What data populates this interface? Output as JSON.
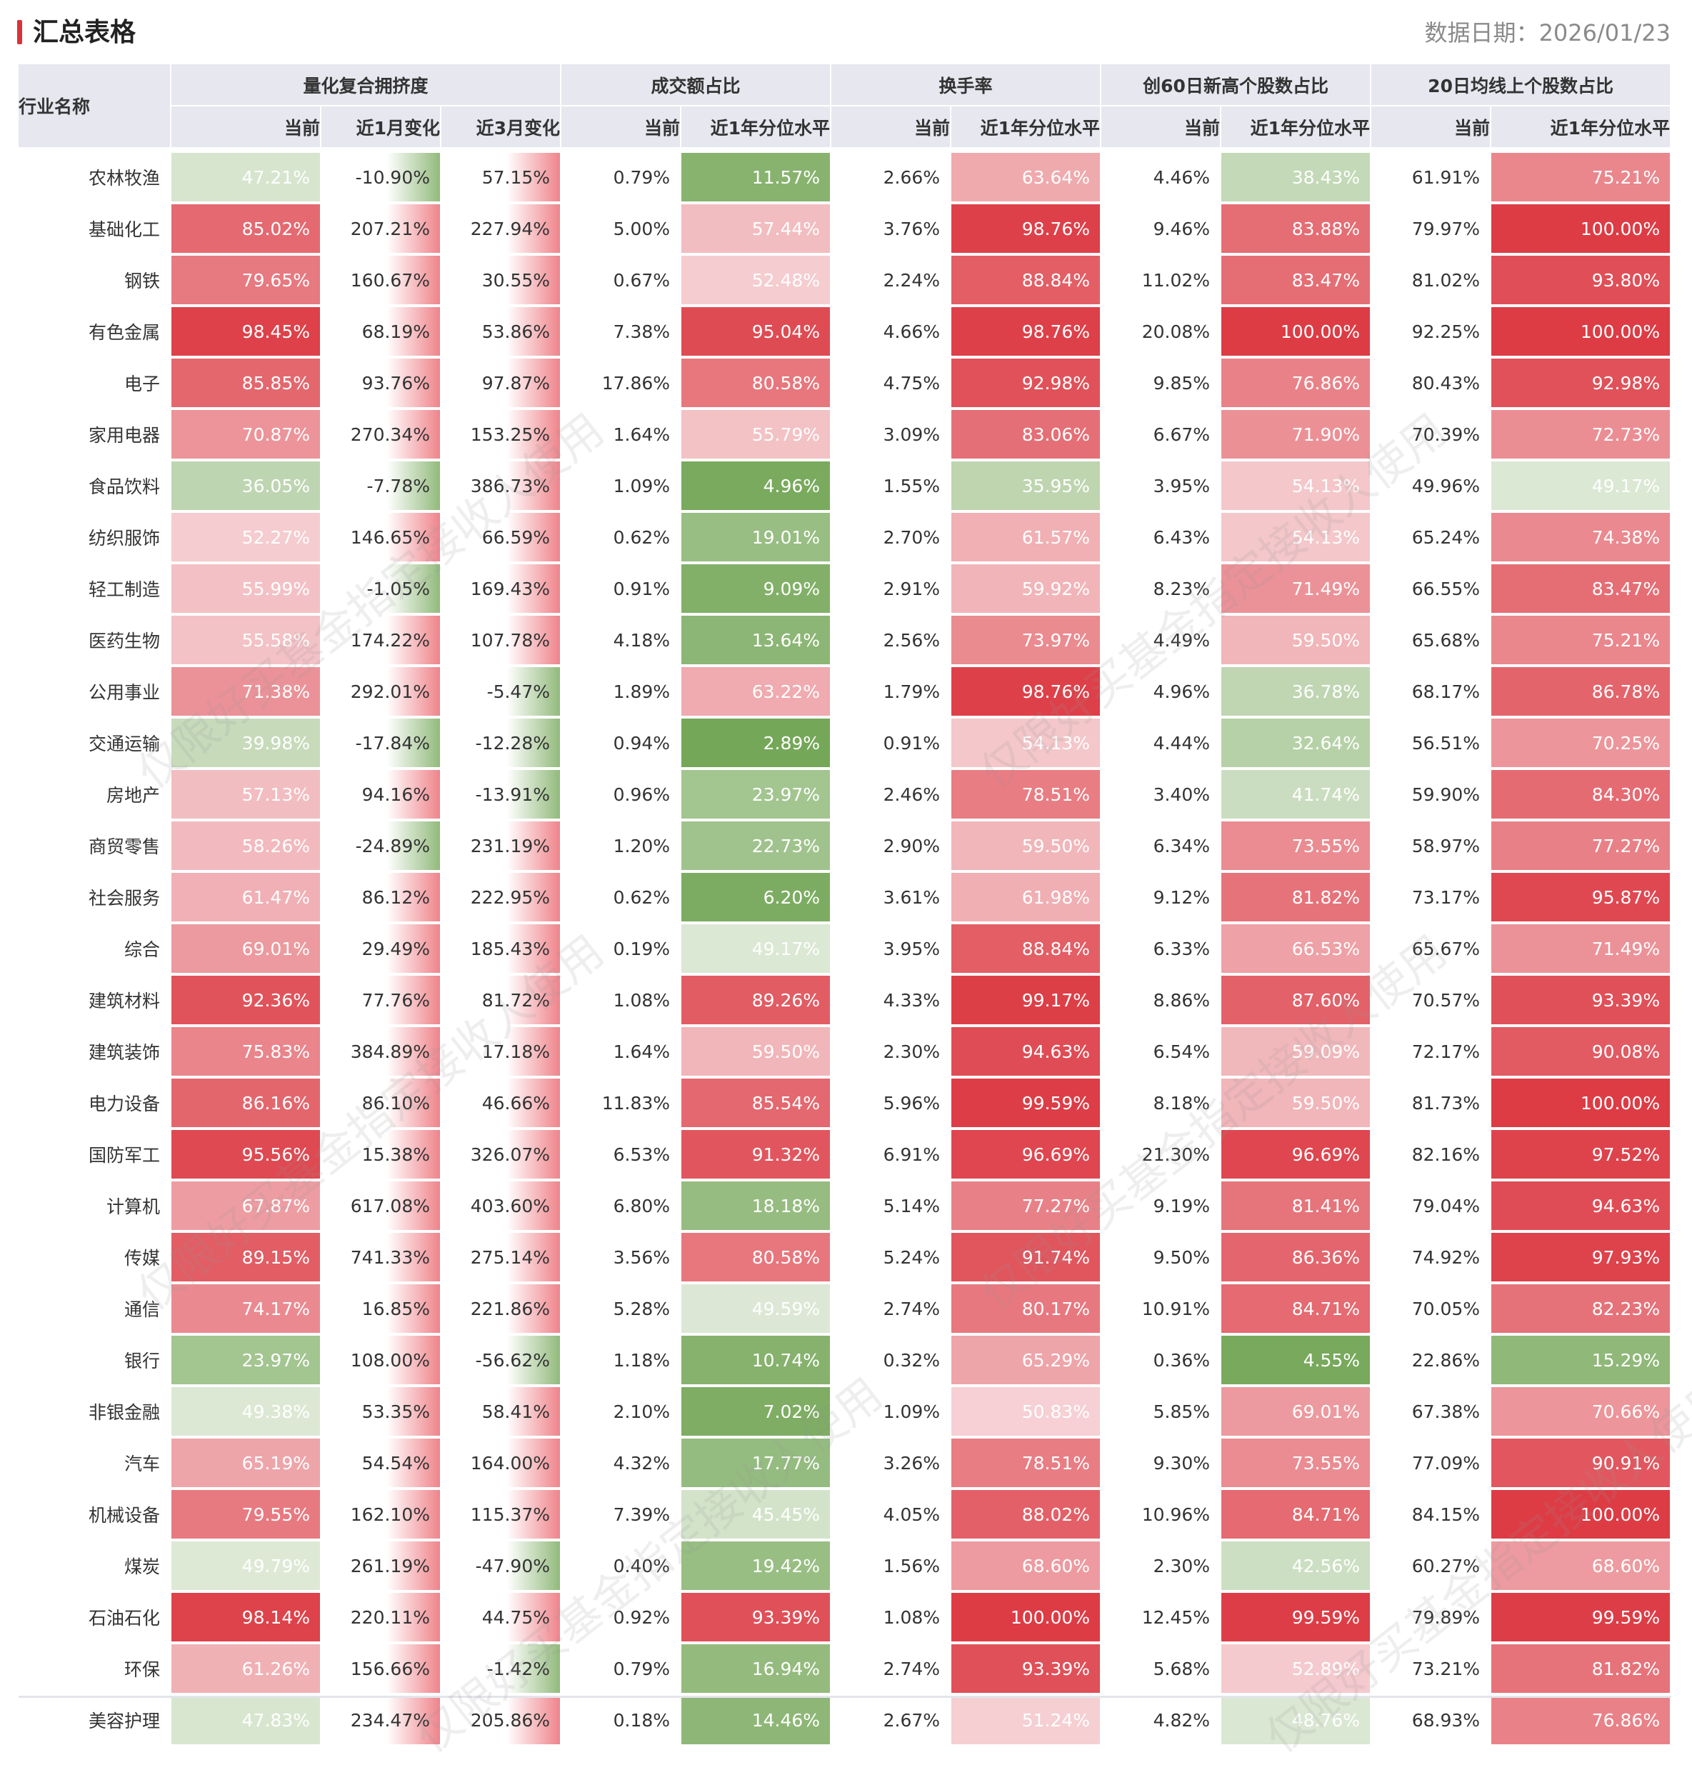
{
  "header": {
    "title": "汇总表格",
    "date_label": "数据日期：",
    "date_value": "2026/01/23"
  },
  "watermark_text": "仅限好买基金指定接收人使用",
  "table": {
    "name_header": "行业名称",
    "groups": [
      "量化复合拥挤度",
      "成交额占比",
      "换手率",
      "创60日新高个股数占比",
      "20日均线上个股数占比"
    ],
    "sub_headers": [
      "当前",
      "近1月变化",
      "近3月变化",
      "当前",
      "近1年分位水平",
      "当前",
      "近1年分位水平",
      "当前",
      "近1年分位水平",
      "当前",
      "近1年分位水平"
    ],
    "rows": [
      {
        "name": "农林牧渔",
        "v": [
          "47.21%",
          "-10.90%",
          "57.15%",
          "0.79%",
          "11.57%",
          "2.66%",
          "63.64%",
          "4.46%",
          "38.43%",
          "61.91%",
          "75.21%"
        ]
      },
      {
        "name": "基础化工",
        "v": [
          "85.02%",
          "207.21%",
          "227.94%",
          "5.00%",
          "57.44%",
          "3.76%",
          "98.76%",
          "9.46%",
          "83.88%",
          "79.97%",
          "100.00%"
        ]
      },
      {
        "name": "钢铁",
        "v": [
          "79.65%",
          "160.67%",
          "30.55%",
          "0.67%",
          "52.48%",
          "2.24%",
          "88.84%",
          "11.02%",
          "83.47%",
          "81.02%",
          "93.80%"
        ]
      },
      {
        "name": "有色金属",
        "v": [
          "98.45%",
          "68.19%",
          "53.86%",
          "7.38%",
          "95.04%",
          "4.66%",
          "98.76%",
          "20.08%",
          "100.00%",
          "92.25%",
          "100.00%"
        ]
      },
      {
        "name": "电子",
        "v": [
          "85.85%",
          "93.76%",
          "97.87%",
          "17.86%",
          "80.58%",
          "4.75%",
          "92.98%",
          "9.85%",
          "76.86%",
          "80.43%",
          "92.98%"
        ]
      },
      {
        "name": "家用电器",
        "v": [
          "70.87%",
          "270.34%",
          "153.25%",
          "1.64%",
          "55.79%",
          "3.09%",
          "83.06%",
          "6.67%",
          "71.90%",
          "70.39%",
          "72.73%"
        ]
      },
      {
        "name": "食品饮料",
        "v": [
          "36.05%",
          "-7.78%",
          "386.73%",
          "1.09%",
          "4.96%",
          "1.55%",
          "35.95%",
          "3.95%",
          "54.13%",
          "49.96%",
          "49.17%"
        ]
      },
      {
        "name": "纺织服饰",
        "v": [
          "52.27%",
          "146.65%",
          "66.59%",
          "0.62%",
          "19.01%",
          "2.70%",
          "61.57%",
          "6.43%",
          "54.13%",
          "65.24%",
          "74.38%"
        ]
      },
      {
        "name": "轻工制造",
        "v": [
          "55.99%",
          "-1.05%",
          "169.43%",
          "0.91%",
          "9.09%",
          "2.91%",
          "59.92%",
          "8.23%",
          "71.49%",
          "66.55%",
          "83.47%"
        ]
      },
      {
        "name": "医药生物",
        "v": [
          "55.58%",
          "174.22%",
          "107.78%",
          "4.18%",
          "13.64%",
          "2.56%",
          "73.97%",
          "4.49%",
          "59.50%",
          "65.68%",
          "75.21%"
        ]
      },
      {
        "name": "公用事业",
        "v": [
          "71.38%",
          "292.01%",
          "-5.47%",
          "1.89%",
          "63.22%",
          "1.79%",
          "98.76%",
          "4.96%",
          "36.78%",
          "68.17%",
          "86.78%"
        ]
      },
      {
        "name": "交通运输",
        "v": [
          "39.98%",
          "-17.84%",
          "-12.28%",
          "0.94%",
          "2.89%",
          "0.91%",
          "54.13%",
          "4.44%",
          "32.64%",
          "56.51%",
          "70.25%"
        ]
      },
      {
        "name": "房地产",
        "v": [
          "57.13%",
          "94.16%",
          "-13.91%",
          "0.96%",
          "23.97%",
          "2.46%",
          "78.51%",
          "3.40%",
          "41.74%",
          "59.90%",
          "84.30%"
        ]
      },
      {
        "name": "商贸零售",
        "v": [
          "58.26%",
          "-24.89%",
          "231.19%",
          "1.20%",
          "22.73%",
          "2.90%",
          "59.50%",
          "6.34%",
          "73.55%",
          "58.97%",
          "77.27%"
        ]
      },
      {
        "name": "社会服务",
        "v": [
          "61.47%",
          "86.12%",
          "222.95%",
          "0.62%",
          "6.20%",
          "3.61%",
          "61.98%",
          "9.12%",
          "81.82%",
          "73.17%",
          "95.87%"
        ]
      },
      {
        "name": "综合",
        "v": [
          "69.01%",
          "29.49%",
          "185.43%",
          "0.19%",
          "49.17%",
          "3.95%",
          "88.84%",
          "6.33%",
          "66.53%",
          "65.67%",
          "71.49%"
        ]
      },
      {
        "name": "建筑材料",
        "v": [
          "92.36%",
          "77.76%",
          "81.72%",
          "1.08%",
          "89.26%",
          "4.33%",
          "99.17%",
          "8.86%",
          "87.60%",
          "70.57%",
          "93.39%"
        ]
      },
      {
        "name": "建筑装饰",
        "v": [
          "75.83%",
          "384.89%",
          "17.18%",
          "1.64%",
          "59.50%",
          "2.30%",
          "94.63%",
          "6.54%",
          "59.09%",
          "72.17%",
          "90.08%"
        ]
      },
      {
        "name": "电力设备",
        "v": [
          "86.16%",
          "86.10%",
          "46.66%",
          "11.83%",
          "85.54%",
          "5.96%",
          "99.59%",
          "8.18%",
          "59.50%",
          "81.73%",
          "100.00%"
        ]
      },
      {
        "name": "国防军工",
        "v": [
          "95.56%",
          "15.38%",
          "326.07%",
          "6.53%",
          "91.32%",
          "6.91%",
          "96.69%",
          "21.30%",
          "96.69%",
          "82.16%",
          "97.52%"
        ]
      },
      {
        "name": "计算机",
        "v": [
          "67.87%",
          "617.08%",
          "403.60%",
          "6.80%",
          "18.18%",
          "5.14%",
          "77.27%",
          "9.19%",
          "81.41%",
          "79.04%",
          "94.63%"
        ]
      },
      {
        "name": "传媒",
        "v": [
          "89.15%",
          "741.33%",
          "275.14%",
          "3.56%",
          "80.58%",
          "5.24%",
          "91.74%",
          "9.50%",
          "86.36%",
          "74.92%",
          "97.93%"
        ]
      },
      {
        "name": "通信",
        "v": [
          "74.17%",
          "16.85%",
          "221.86%",
          "5.28%",
          "49.59%",
          "2.74%",
          "80.17%",
          "10.91%",
          "84.71%",
          "70.05%",
          "82.23%"
        ]
      },
      {
        "name": "银行",
        "v": [
          "23.97%",
          "108.00%",
          "-56.62%",
          "1.18%",
          "10.74%",
          "0.32%",
          "65.29%",
          "0.36%",
          "4.55%",
          "22.86%",
          "15.29%"
        ]
      },
      {
        "name": "非银金融",
        "v": [
          "49.38%",
          "53.35%",
          "58.41%",
          "2.10%",
          "7.02%",
          "1.09%",
          "50.83%",
          "5.85%",
          "69.01%",
          "67.38%",
          "70.66%"
        ]
      },
      {
        "name": "汽车",
        "v": [
          "65.19%",
          "54.54%",
          "164.00%",
          "4.32%",
          "17.77%",
          "3.26%",
          "78.51%",
          "9.30%",
          "73.55%",
          "77.09%",
          "90.91%"
        ]
      },
      {
        "name": "机械设备",
        "v": [
          "79.55%",
          "162.10%",
          "115.37%",
          "7.39%",
          "45.45%",
          "4.05%",
          "88.02%",
          "10.96%",
          "84.71%",
          "84.15%",
          "100.00%"
        ]
      },
      {
        "name": "煤炭",
        "v": [
          "49.79%",
          "261.19%",
          "-47.90%",
          "0.40%",
          "19.42%",
          "1.56%",
          "68.60%",
          "2.30%",
          "42.56%",
          "60.27%",
          "68.60%"
        ]
      },
      {
        "name": "石油石化",
        "v": [
          "98.14%",
          "220.11%",
          "44.75%",
          "0.92%",
          "93.39%",
          "1.08%",
          "100.00%",
          "12.45%",
          "99.59%",
          "79.89%",
          "99.59%"
        ]
      },
      {
        "name": "环保",
        "v": [
          "61.26%",
          "156.66%",
          "-1.42%",
          "0.79%",
          "16.94%",
          "2.74%",
          "93.39%",
          "5.68%",
          "52.89%",
          "73.21%",
          "81.82%"
        ]
      },
      {
        "name": "美容护理",
        "v": [
          "47.83%",
          "234.47%",
          "205.86%",
          "0.18%",
          "14.46%",
          "2.67%",
          "51.24%",
          "4.82%",
          "48.76%",
          "68.93%",
          "76.86%"
        ]
      }
    ]
  },
  "colors": {
    "accent": "#d9333b",
    "header_bg": "#e6e7ef",
    "heat_green_dark": "#6ea350",
    "heat_green_light": "#dde9d6",
    "heat_red_light": "#f6d3d6",
    "heat_red_dark": "#dd3c45"
  }
}
